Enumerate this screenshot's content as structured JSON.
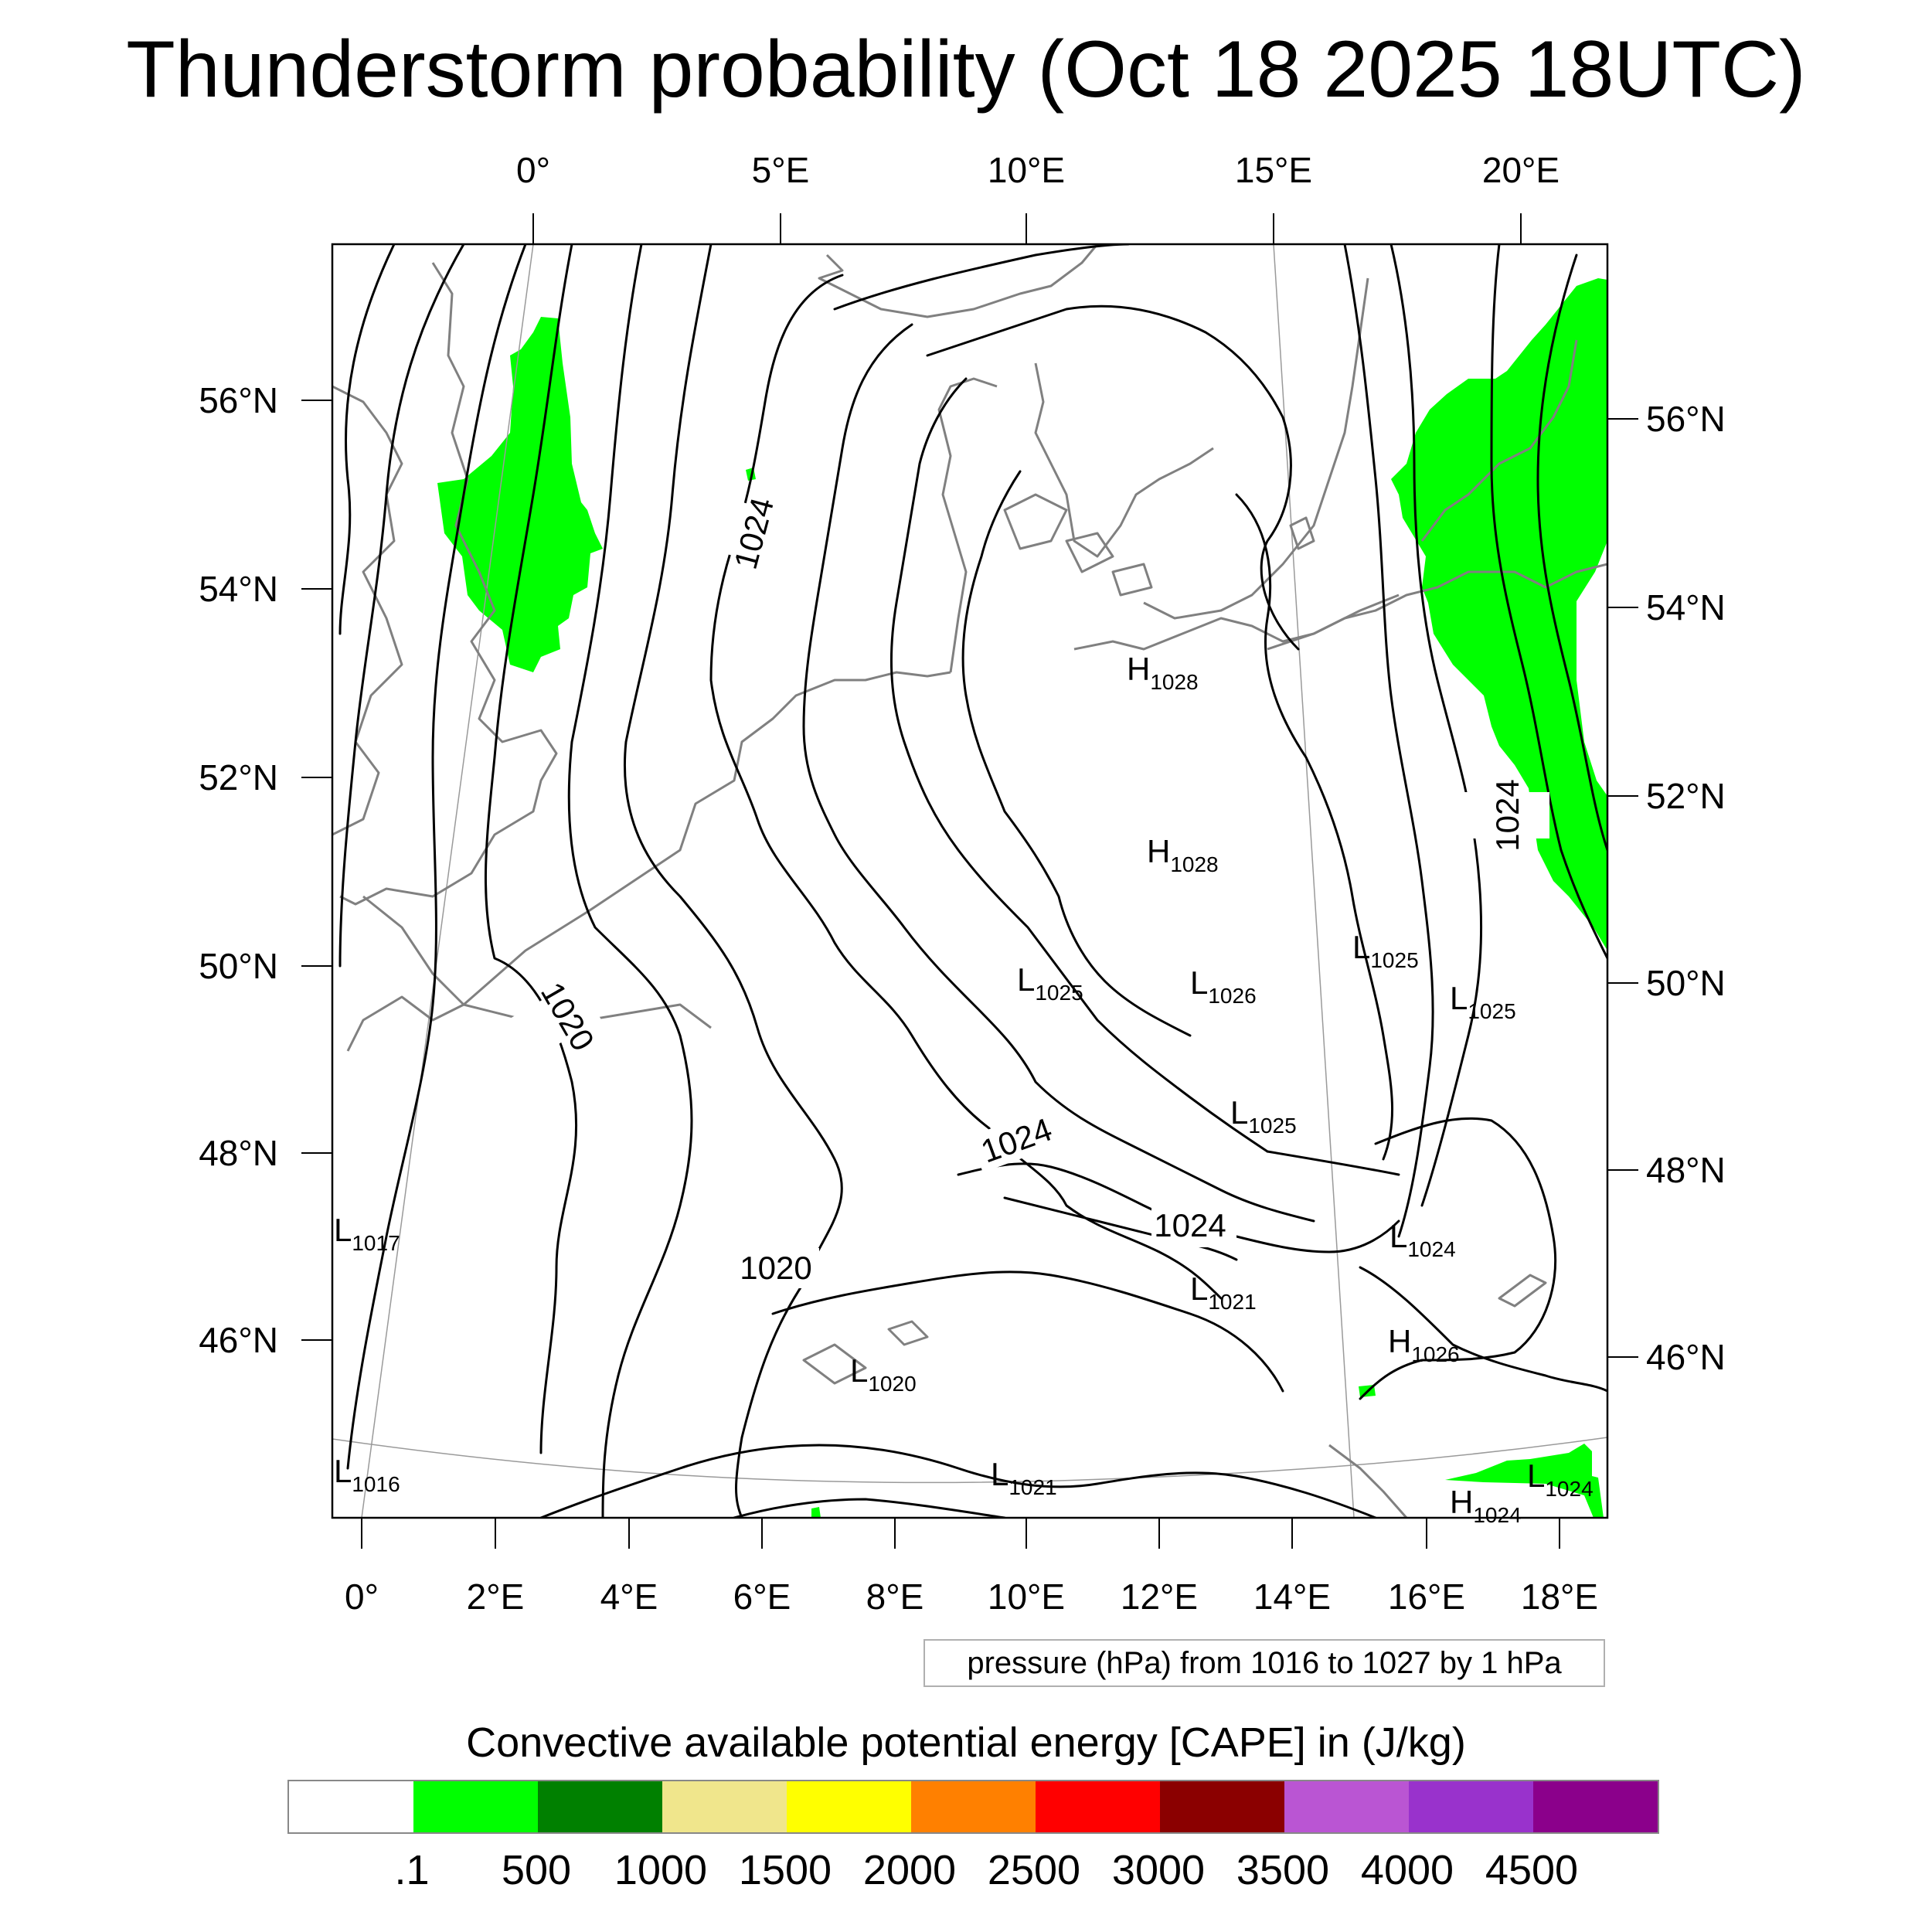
{
  "title": "Thunderstorm probability (Oct 18 2025 18UTC)",
  "top_lon_labels": [
    "0°",
    "5°E",
    "10°E",
    "15°E",
    "20°E"
  ],
  "bottom_lon_labels": [
    "0°",
    "2°E",
    "4°E",
    "6°E",
    "8°E",
    "10°E",
    "12°E",
    "14°E",
    "16°E",
    "18°E"
  ],
  "left_lat_labels": [
    "56°N",
    "54°N",
    "52°N",
    "50°N",
    "48°N",
    "46°N"
  ],
  "right_lat_labels": [
    "56°N",
    "54°N",
    "52°N",
    "50°N",
    "48°N",
    "46°N"
  ],
  "isobar_labels": [
    "1024",
    "1020",
    "1024",
    "1020",
    "1024",
    "1024"
  ],
  "pressure_centers": [
    {
      "type": "H",
      "value": "1028"
    },
    {
      "type": "H",
      "value": "1028"
    },
    {
      "type": "L",
      "value": "1025"
    },
    {
      "type": "L",
      "value": "1026"
    },
    {
      "type": "L",
      "value": "1025"
    },
    {
      "type": "L",
      "value": "1025"
    },
    {
      "type": "L",
      "value": "1025"
    },
    {
      "type": "L",
      "value": "1017"
    },
    {
      "type": "L",
      "value": "1024"
    },
    {
      "type": "L",
      "value": "1021"
    },
    {
      "type": "H",
      "value": "1026"
    },
    {
      "type": "L",
      "value": "1020"
    },
    {
      "type": "L",
      "value": "1016"
    },
    {
      "type": "L",
      "value": "1021"
    },
    {
      "type": "L",
      "value": "1024"
    },
    {
      "type": "H",
      "value": "1024"
    }
  ],
  "contour_note": "pressure (hPa) from 1016 to 1027 by 1 hPa",
  "colorbar": {
    "title": "Convective available potential energy [CAPE] in (J/kg)",
    "colors": [
      "#ffffff",
      "#00ff00",
      "#008000",
      "#f0e68c",
      "#ffff00",
      "#ff8000",
      "#ff0000",
      "#8b0000",
      "#ba55d3",
      "#9932cc",
      "#8b008b"
    ],
    "labels": [
      ".1",
      "500",
      "1000",
      "1500",
      "2000",
      "2500",
      "3000",
      "3500",
      "4000",
      "4500"
    ]
  },
  "colors": {
    "cape_fill": "#00ff00",
    "coastline": "#808080",
    "isobar": "#000000"
  }
}
